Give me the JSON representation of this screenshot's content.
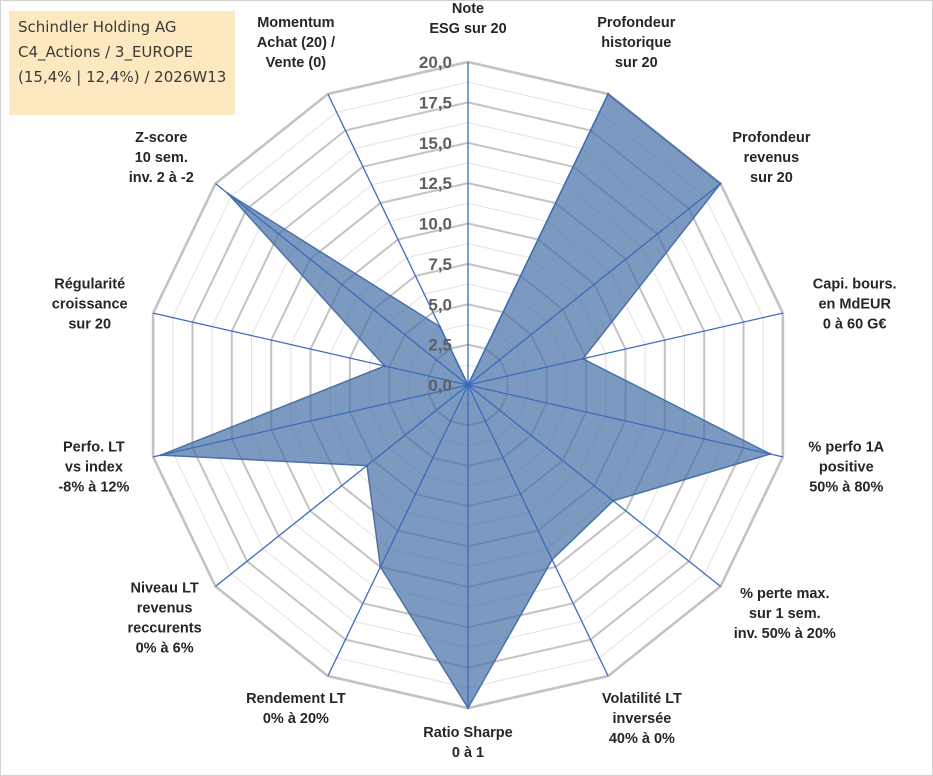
{
  "title_box": {
    "line1": "Schindler Holding AG",
    "line2": "C4_Actions / 3_EUROPE",
    "line3": "(15,4% | 12,4%) / 2026W13"
  },
  "colors": {
    "fill": "#4a72a8",
    "axis_line": "#3a6bbd",
    "grid": "#c3c3c3",
    "grid_minor": "#e2e2e2",
    "title_box_bg": "#fde9bf"
  },
  "chart_data": {
    "type": "radar",
    "r_range": [
      0,
      20
    ],
    "tick_labels": [
      "0,0",
      "2,5",
      "5,0",
      "7,5",
      "10,0",
      "12,5",
      "15,0",
      "17,5",
      "20,0"
    ],
    "grid": true,
    "categories": [
      [
        "Note",
        "ESG sur 20"
      ],
      [
        "Profondeur",
        "historique",
        "sur 20"
      ],
      [
        "Profondeur",
        "revenus",
        "sur 20"
      ],
      [
        "Capi. bours.",
        "en MdEUR",
        "0 à 60 G€"
      ],
      [
        "% perfo 1A",
        "positive",
        "50% à 80%"
      ],
      [
        "% perte max.",
        "sur 1 sem.",
        "inv. 50% à 20%"
      ],
      [
        "Volatilité LT",
        "inversée",
        "40% à 0%"
      ],
      [
        "Ratio Sharpe",
        "0 à 1"
      ],
      [
        "Rendement LT",
        "0% à 20%"
      ],
      [
        "Niveau LT",
        "revenus",
        "reccurents",
        "0% à 6%"
      ],
      [
        "Perfo. LT",
        "vs index",
        "-8% à 12%"
      ],
      [
        "Régularité",
        "croissance",
        "sur 20"
      ],
      [
        "Z-score",
        "10 sem.",
        "inv. 2 à -2"
      ],
      [
        "Momentum",
        "Achat (20) /",
        "Vente (0)"
      ]
    ],
    "series": [
      {
        "values": [
          0,
          20,
          20,
          7.3,
          19.2,
          11.5,
          12.0,
          20,
          12.5,
          8.0,
          19.5,
          5.3,
          19.0,
          4.0
        ]
      }
    ]
  }
}
